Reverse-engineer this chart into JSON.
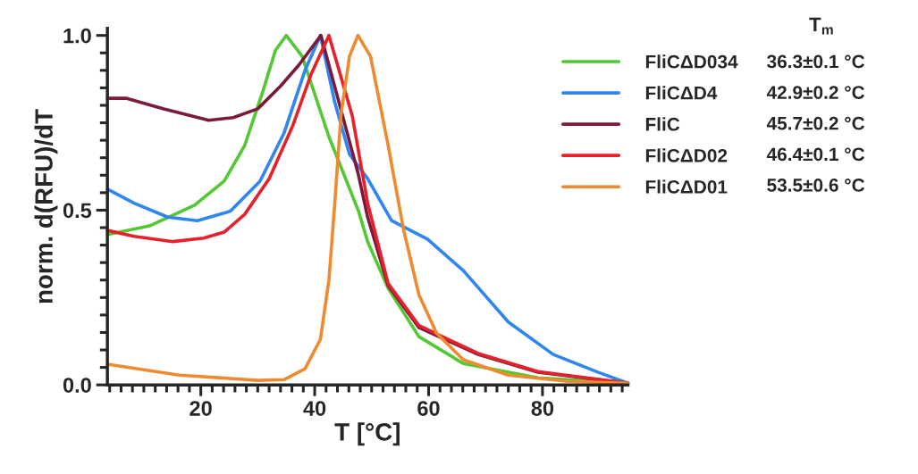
{
  "chart_data": {
    "type": "line",
    "xlabel": "T [°C]",
    "ylabel": "norm. d(RFU)/dT",
    "legend_title": "T$_{m}$",
    "xlim": [
      3.6,
      95
    ],
    "ylim": [
      0,
      1.02
    ],
    "xticks": [
      {
        "value": 4,
        "label": null
      },
      {
        "value": 6,
        "label": null
      },
      {
        "value": 8,
        "label": null
      },
      {
        "value": 10,
        "label": null
      },
      {
        "value": 12,
        "label": null
      },
      {
        "value": 14,
        "label": null
      },
      {
        "value": 16,
        "label": null
      },
      {
        "value": 18,
        "label": null
      },
      20,
      {
        "value": 22,
        "label": null
      },
      {
        "value": 24,
        "label": null
      },
      {
        "value": 26,
        "label": null
      },
      {
        "value": 28,
        "label": null
      },
      {
        "value": 30,
        "label": null
      },
      {
        "value": 32,
        "label": null
      },
      {
        "value": 34,
        "label": null
      },
      {
        "value": 36,
        "label": null
      },
      {
        "value": 38,
        "label": null
      },
      40,
      {
        "value": 42,
        "label": null
      },
      {
        "value": 44,
        "label": null
      },
      {
        "value": 46,
        "label": null
      },
      {
        "value": 48,
        "label": null
      },
      {
        "value": 50,
        "label": null
      },
      {
        "value": 52,
        "label": null
      },
      {
        "value": 54,
        "label": null
      },
      {
        "value": 56,
        "label": null
      },
      {
        "value": 58,
        "label": null
      },
      60,
      {
        "value": 62,
        "label": null
      },
      {
        "value": 64,
        "label": null
      },
      {
        "value": 66,
        "label": null
      },
      {
        "value": 68,
        "label": null
      },
      {
        "value": 70,
        "label": null
      },
      {
        "value": 72,
        "label": null
      },
      {
        "value": 74,
        "label": null
      },
      {
        "value": 76,
        "label": null
      },
      {
        "value": 78,
        "label": null
      },
      80,
      {
        "value": 82,
        "label": null
      },
      {
        "value": 84,
        "label": null
      },
      {
        "value": 86,
        "label": null
      },
      {
        "value": 88,
        "label": null
      },
      {
        "value": 90,
        "label": null
      },
      {
        "value": 92,
        "label": null
      },
      {
        "value": 94,
        "label": null
      }
    ],
    "yticks": [
      {
        "value": 0,
        "label": "0.0"
      },
      {
        "value": 0.05,
        "label": null
      },
      {
        "value": 0.1,
        "label": null
      },
      {
        "value": 0.15,
        "label": null
      },
      {
        "value": 0.2,
        "label": null
      },
      {
        "value": 0.25,
        "label": null
      },
      {
        "value": 0.3,
        "label": null
      },
      {
        "value": 0.35,
        "label": null
      },
      {
        "value": 0.4,
        "label": null
      },
      {
        "value": 0.45,
        "label": null
      },
      {
        "value": 0.5,
        "label": "0.5"
      },
      {
        "value": 0.55,
        "label": null
      },
      {
        "value": 0.6,
        "label": null
      },
      {
        "value": 0.65,
        "label": null
      },
      {
        "value": 0.7,
        "label": null
      },
      {
        "value": 0.75,
        "label": null
      },
      {
        "value": 0.8,
        "label": null
      },
      {
        "value": 0.85,
        "label": null
      },
      {
        "value": 0.9,
        "label": null
      },
      {
        "value": 0.95,
        "label": null
      },
      {
        "value": 1.0,
        "label": "1.0"
      }
    ],
    "grid": false,
    "legend": "right",
    "marker": "none",
    "line_style": "solid",
    "series": [
      {
        "name": "FliCΔD034",
        "color": "#52c832",
        "x": [
          3.6,
          11,
          18.9,
          24.1,
          27.7,
          30.9,
          33.1,
          35,
          37.8,
          42.5,
          47.7,
          49.3,
          52.9,
          58.3,
          66.1,
          79.2,
          95
        ],
        "values": [
          0.43,
          0.455,
          0.514,
          0.583,
          0.685,
          0.84,
          0.957,
          1.0,
          0.94,
          0.71,
          0.497,
          0.41,
          0.276,
          0.138,
          0.061,
          0.02,
          0.005
        ]
      },
      {
        "name": "FliCΔD4",
        "color": "#2f86f0",
        "x": [
          3.6,
          8.3,
          14.2,
          19.4,
          25.2,
          30.4,
          34.6,
          38.3,
          41,
          43.5,
          46.1,
          47.7,
          49.3,
          53.5,
          59.8,
          66.1,
          74,
          81.9,
          89.8,
          95
        ],
        "values": [
          0.56,
          0.52,
          0.48,
          0.47,
          0.497,
          0.583,
          0.72,
          0.9,
          1.0,
          0.81,
          0.66,
          0.625,
          0.59,
          0.47,
          0.417,
          0.327,
          0.18,
          0.087,
          0.036,
          0.005
        ]
      },
      {
        "name": "FliC",
        "color": "#7a1a3c",
        "x": [
          3.6,
          7,
          13.5,
          21.4,
          25.7,
          30,
          34,
          37.2,
          41.1,
          47.7,
          49.3,
          52.9,
          58.3,
          68.7,
          79.2,
          95
        ],
        "values": [
          0.82,
          0.82,
          0.79,
          0.757,
          0.765,
          0.79,
          0.855,
          0.915,
          1.0,
          0.6,
          0.48,
          0.284,
          0.164,
          0.087,
          0.036,
          0.005
        ]
      },
      {
        "name": "FliCΔD02",
        "color": "#e8202a",
        "x": [
          3.6,
          8.3,
          15.1,
          20.5,
          24.1,
          27.7,
          32,
          36.2,
          39.4,
          42.5,
          46.6,
          49.3,
          52.9,
          58.3,
          68.7,
          79.2,
          95
        ],
        "values": [
          0.442,
          0.425,
          0.41,
          0.42,
          0.437,
          0.488,
          0.59,
          0.744,
          0.89,
          1.0,
          0.77,
          0.52,
          0.29,
          0.17,
          0.09,
          0.038,
          0.005
        ]
      },
      {
        "name": "FliCΔD01",
        "color": "#f08a30",
        "x": [
          3.6,
          16.2,
          30,
          34.6,
          38.3,
          41,
          42.5,
          43.5,
          44.6,
          46.1,
          47.6,
          49.8,
          52.9,
          55.6,
          58.3,
          61.4,
          66.1,
          74,
          84.4,
          95
        ],
        "values": [
          0.059,
          0.028,
          0.013,
          0.015,
          0.046,
          0.13,
          0.3,
          0.514,
          0.77,
          0.94,
          1.0,
          0.94,
          0.685,
          0.445,
          0.258,
          0.148,
          0.072,
          0.028,
          0.01,
          0.005
        ]
      }
    ],
    "annotations": [
      "36.3±0.1 °C",
      "42.9±0.2 °C",
      "45.7±0.2 °C",
      "46.4±0.1 °C",
      "53.5±0.6 °C"
    ]
  }
}
